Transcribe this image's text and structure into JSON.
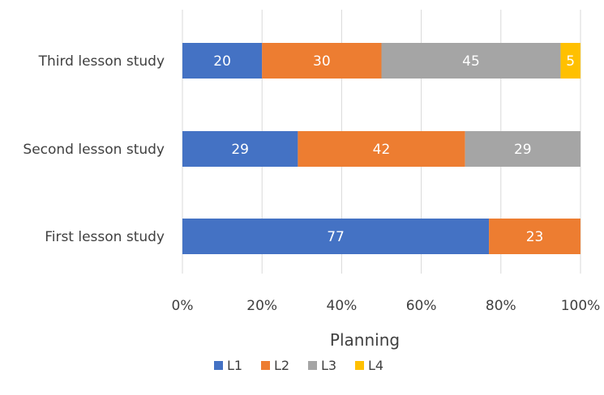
{
  "chart_data": {
    "type": "bar",
    "orientation": "horizontal",
    "stacked": "percent",
    "categories": [
      "Third lesson study",
      "Second lesson study",
      "First lesson study"
    ],
    "series": [
      {
        "name": "L1",
        "color": "#4472c4",
        "values": [
          20,
          29,
          77
        ]
      },
      {
        "name": "L2",
        "color": "#ed7d31",
        "values": [
          30,
          42,
          23
        ]
      },
      {
        "name": "L3",
        "color": "#a5a5a5",
        "values": [
          45,
          29,
          0
        ]
      },
      {
        "name": "L4",
        "color": "#ffc000",
        "values": [
          5,
          0,
          0
        ]
      }
    ],
    "x_ticks": [
      "0%",
      "20%",
      "40%",
      "60%",
      "80%",
      "100%"
    ],
    "xlim": [
      0,
      100
    ],
    "xlabel": "Planning",
    "grid": true,
    "legend_position": "bottom"
  }
}
